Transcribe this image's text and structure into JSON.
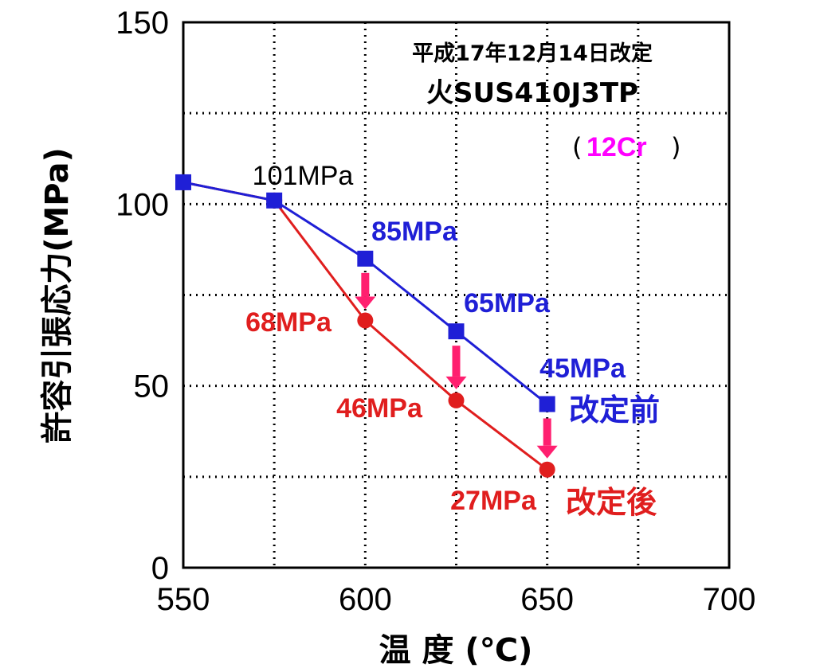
{
  "chart_data": {
    "type": "line",
    "xlabel": "温 度 (℃)",
    "ylabel": "許容引張応力(MPa)",
    "xlim": [
      550,
      700
    ],
    "ylim": [
      0,
      150
    ],
    "x_ticks": [
      "550",
      "600",
      "650",
      "700"
    ],
    "y_ticks": [
      "0",
      "50",
      "100",
      "150"
    ],
    "grid": true,
    "header": {
      "date": "平成17年12月14日改定",
      "material": "火SUS410J3TP",
      "paren_open": "(",
      "grade": "12Cr",
      "paren_close": ")"
    },
    "series": [
      {
        "name": "改定前",
        "color": "#1f1fd6",
        "marker": "square",
        "x": [
          550,
          575,
          600,
          625,
          650
        ],
        "y": [
          106,
          101,
          85,
          65,
          45
        ]
      },
      {
        "name": "改定後",
        "color": "#e01e1e",
        "marker": "circle",
        "x": [
          550,
          575,
          600,
          625,
          650
        ],
        "y": [
          106,
          101,
          68,
          46,
          27
        ]
      }
    ],
    "data_labels": [
      {
        "text": "101MPa",
        "color": "#000000"
      },
      {
        "text": "85MPa",
        "color": "#1f1fd6"
      },
      {
        "text": "65MPa",
        "color": "#1f1fd6"
      },
      {
        "text": "45MPa",
        "color": "#1f1fd6"
      },
      {
        "text": "68MPa",
        "color": "#e01e1e"
      },
      {
        "text": "46MPa",
        "color": "#e01e1e"
      },
      {
        "text": "27MPa",
        "color": "#e01e1e"
      }
    ],
    "arrow_color": "#ff1f6f",
    "arrows_at_x": [
      600,
      625,
      650
    ]
  }
}
